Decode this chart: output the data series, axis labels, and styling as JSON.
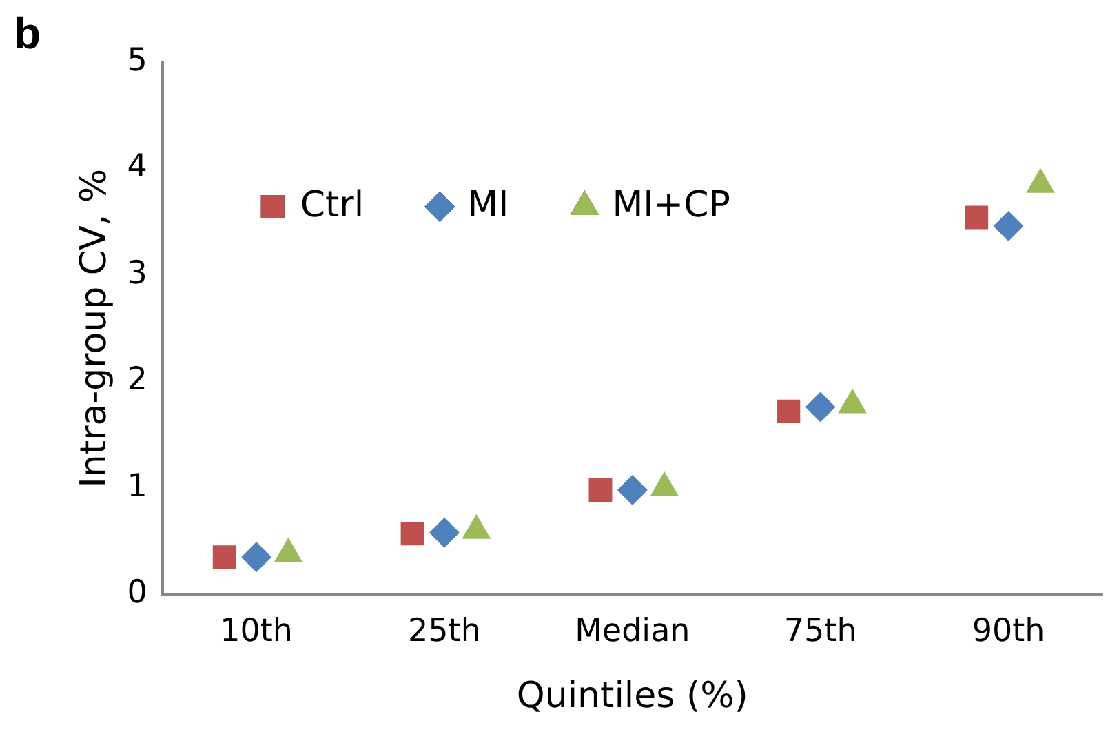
{
  "chart_data": {
    "type": "scatter",
    "title": "b",
    "xlabel": "Quintiles (%)",
    "ylabel": "Intra-group CV, %",
    "categories": [
      "10th",
      "25th",
      "Median",
      "75th",
      "90th"
    ],
    "series": [
      {
        "name": "Ctrl",
        "color": "#c0504d",
        "marker": "square",
        "values": [
          0.35,
          0.57,
          0.98,
          1.72,
          3.54
        ]
      },
      {
        "name": "MI",
        "color": "#4f81bd",
        "marker": "diamond",
        "values": [
          0.35,
          0.58,
          0.98,
          1.76,
          3.46
        ]
      },
      {
        "name": "MI+CP",
        "color": "#9bbb59",
        "marker": "triangle",
        "values": [
          0.38,
          0.6,
          1.0,
          1.78,
          3.85
        ]
      }
    ],
    "ylim": [
      0,
      5
    ],
    "yticks": [
      0,
      1,
      2,
      3,
      4,
      5
    ],
    "grid": false,
    "legend": "top left"
  }
}
